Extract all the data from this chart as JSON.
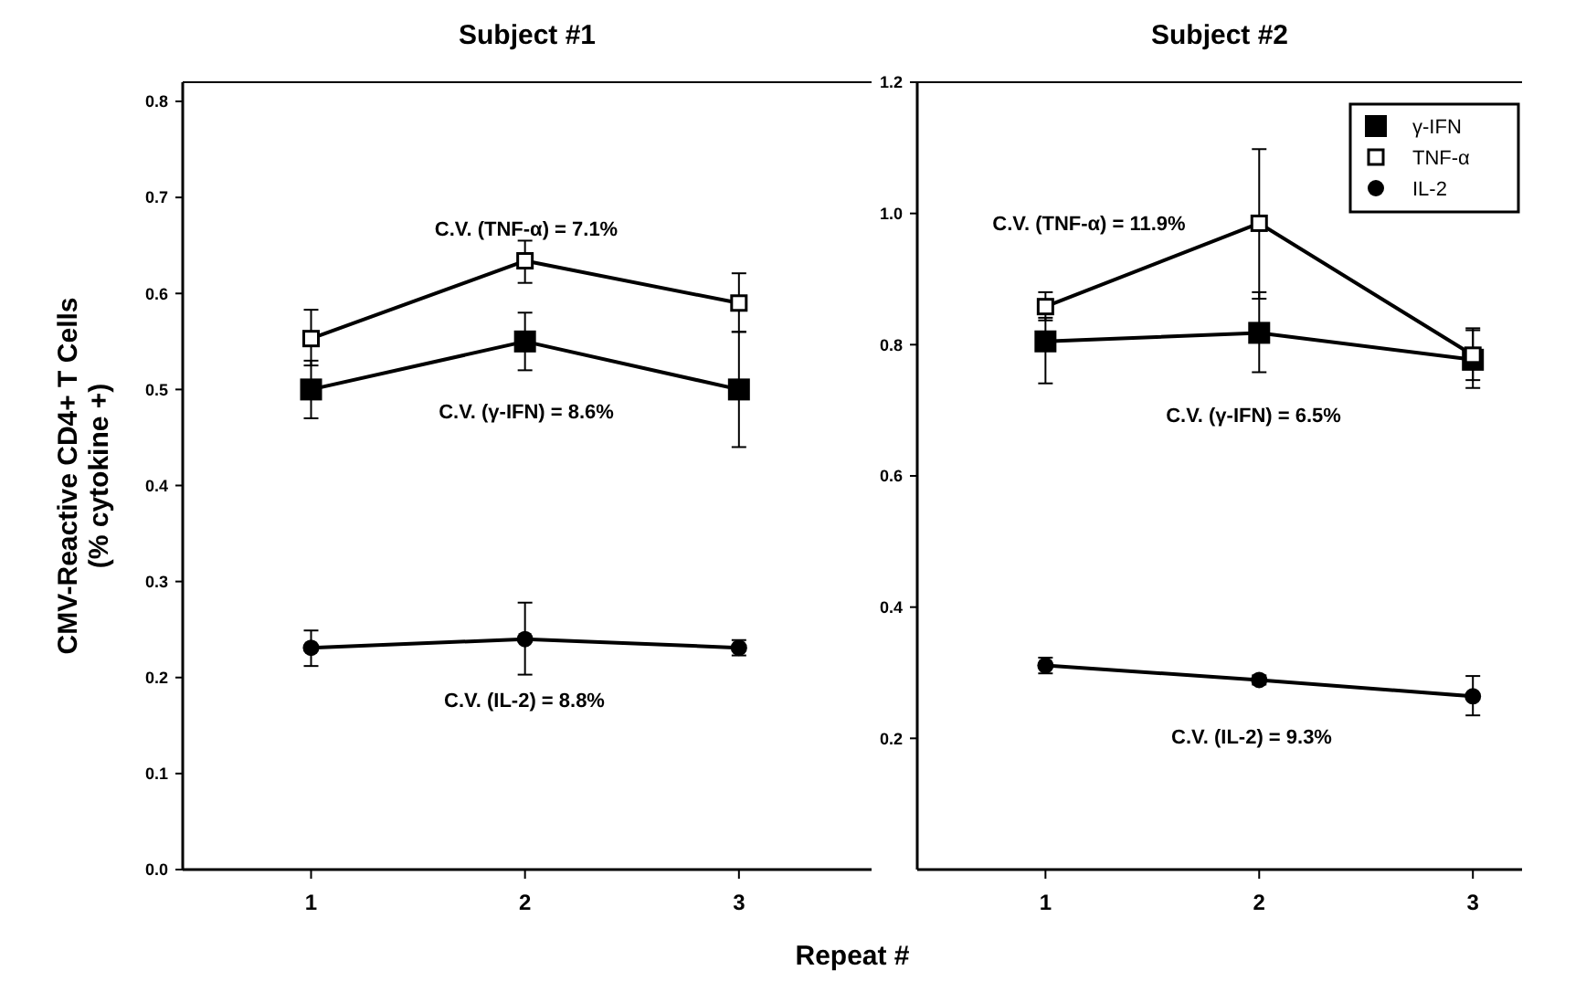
{
  "chart_data": [
    {
      "type": "line",
      "title": "Subject #1",
      "ylabel": "CMV-Reactive CD4+ T Cells\n(% cytokine +)",
      "xlabel": "Repeat #",
      "x": [
        1,
        2,
        3
      ],
      "xlim": [
        0.4,
        3.62
      ],
      "xticks": [
        1,
        2,
        3
      ],
      "ylim": [
        0,
        0.82
      ],
      "yticks": [
        {
          "value": 0,
          "label": "0.0"
        },
        0.1,
        0.2,
        0.3,
        0.4,
        0.5,
        0.6,
        0.7,
        0.8
      ],
      "grid": false,
      "legend": false,
      "line_style": "solid",
      "series": [
        {
          "color": "#000000",
          "marker": "square",
          "values": [
            0.5,
            0.55,
            0.5
          ],
          "errors": [
            [
              0.47,
              0.53
            ],
            [
              0.52,
              0.58
            ],
            [
              0.44,
              0.56
            ]
          ]
        },
        {
          "color": "#000000",
          "marker": "square-open",
          "values": [
            0.553,
            0.634,
            0.59
          ],
          "errors": [
            [
              0.525,
              0.583
            ],
            [
              0.611,
              0.655
            ],
            [
              0.56,
              0.621
            ]
          ]
        },
        {
          "color": "#000000",
          "marker": "circle",
          "values": [
            0.231,
            0.24,
            0.231
          ],
          "errors": [
            [
              0.212,
              0.249
            ],
            [
              0.203,
              0.278
            ],
            [
              0.223,
              0.239
            ]
          ]
        }
      ],
      "annotations": [
        "C.V. (TNF-α) = 7.1%",
        "C.V. (γ-IFN) = 8.6%",
        "C.V. (IL-2) = 8.8%"
      ]
    },
    {
      "type": "line",
      "title": "Subject #2",
      "x": [
        1,
        2,
        3
      ],
      "xlim": [
        0.4,
        3.23
      ],
      "xticks": [
        1,
        2,
        3
      ],
      "ylim": [
        0,
        1.2
      ],
      "yticks": [
        {
          "value": 0.2,
          "label": "0.2"
        },
        {
          "value": 0.4,
          "label": "0.4"
        },
        {
          "value": 0.6,
          "label": "0.6"
        },
        {
          "value": 0.8,
          "label": "0.8"
        },
        {
          "value": 1.0,
          "label": "1.0"
        },
        {
          "value": 1.2,
          "label": "1.2"
        }
      ],
      "grid": false,
      "legend": "top right",
      "line_style": "solid",
      "series": [
        {
          "name": "γ-IFN",
          "color": "#000000",
          "marker": "square",
          "values": [
            0.805,
            0.818,
            0.777
          ],
          "errors": [
            [
              0.741,
              0.841
            ],
            [
              0.758,
              0.88
            ],
            [
              0.734,
              0.822
            ]
          ]
        },
        {
          "name": "TNF-α",
          "color": "#000000",
          "marker": "square-open",
          "values": [
            0.858,
            0.985,
            0.784
          ],
          "errors": [
            [
              0.837,
              0.88
            ],
            [
              0.87,
              1.098
            ],
            [
              0.746,
              0.825
            ]
          ]
        },
        {
          "name": "IL-2",
          "color": "#000000",
          "marker": "circle",
          "values": [
            0.311,
            0.289,
            0.264
          ],
          "errors": [
            [
              0.299,
              0.323
            ],
            [
              0.282,
              0.296
            ],
            [
              0.235,
              0.295
            ]
          ]
        }
      ],
      "annotations": [
        "C.V. (TNF-α) = 11.9%",
        "C.V. (γ-IFN) = 6.5%",
        "C.V. (IL-2) = 9.3%"
      ]
    }
  ]
}
